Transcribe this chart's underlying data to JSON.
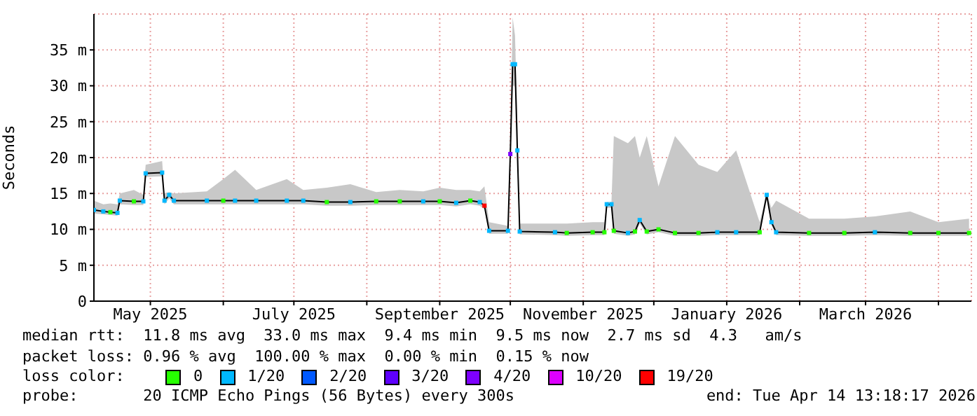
{
  "chart_data": {
    "type": "line",
    "ylabel": "Seconds",
    "legend_title": "loss color:",
    "legend": "bottom",
    "grid": true,
    "xlim": [
      "2025-04-07",
      "2026-04-15"
    ],
    "xticks": [
      {
        "value": "2025-05-01",
        "label": "May 2025"
      },
      {
        "value": "2025-06-01",
        "label": null
      },
      {
        "value": "2025-07-01",
        "label": "July 2025"
      },
      {
        "value": "2025-08-01",
        "label": null
      },
      {
        "value": "2025-09-01",
        "label": "September 2025"
      },
      {
        "value": "2025-10-01",
        "label": null
      },
      {
        "value": "2025-11-01",
        "label": "November 2025"
      },
      {
        "value": "2025-12-01",
        "label": null
      },
      {
        "value": "2026-01-01",
        "label": "January 2026"
      },
      {
        "value": "2026-02-01",
        "label": null
      },
      {
        "value": "2026-03-01",
        "label": "March 2026"
      },
      {
        "value": "2026-04-01",
        "label": null
      }
    ],
    "ylim": [
      0,
      40
    ],
    "yticks": [
      0,
      {
        "value": 5,
        "label": "5 m"
      },
      {
        "value": 10,
        "label": "10 m"
      },
      {
        "value": 15,
        "label": "15 m"
      },
      {
        "value": 20,
        "label": "20 m"
      },
      {
        "value": 25,
        "label": "25 m"
      },
      {
        "value": 30,
        "label": "30 m"
      },
      {
        "value": 35,
        "label": "35 m"
      }
    ],
    "x": [
      "2025-04-07",
      "2025-04-11",
      "2025-04-14",
      "2025-04-17",
      "2025-04-18",
      "2025-04-24",
      "2025-04-28",
      "2025-04-29",
      "2025-05-06",
      "2025-05-07",
      "2025-05-09",
      "2025-05-11",
      "2025-05-25",
      "2025-06-01",
      "2025-06-06",
      "2025-06-15",
      "2025-06-28",
      "2025-07-05",
      "2025-07-15",
      "2025-07-25",
      "2025-08-05",
      "2025-08-15",
      "2025-08-25",
      "2025-09-01",
      "2025-09-08",
      "2025-09-14",
      "2025-09-18",
      "2025-09-20",
      "2025-09-22",
      "2025-09-30",
      "2025-10-01",
      "2025-10-02",
      "2025-10-03",
      "2025-10-04",
      "2025-10-05",
      "2025-10-20",
      "2025-10-25",
      "2025-11-05",
      "2025-11-10",
      "2025-11-11",
      "2025-11-13",
      "2025-11-14",
      "2025-11-20",
      "2025-11-23",
      "2025-11-25",
      "2025-11-28",
      "2025-12-03",
      "2025-12-10",
      "2025-12-20",
      "2025-12-28",
      "2026-01-05",
      "2026-01-15",
      "2026-01-18",
      "2026-01-20",
      "2026-01-22",
      "2026-02-05",
      "2026-02-20",
      "2026-03-05",
      "2026-03-20",
      "2026-04-01",
      "2026-04-14"
    ],
    "series": [
      {
        "color": "#000000",
        "values": [
          12.7,
          12.5,
          12.4,
          12.3,
          14.0,
          13.9,
          13.9,
          17.8,
          17.9,
          14.0,
          14.8,
          14.0,
          14.0,
          14.0,
          14.0,
          14.0,
          14.0,
          14.0,
          13.8,
          13.8,
          13.9,
          13.9,
          13.9,
          13.9,
          13.7,
          14.0,
          13.8,
          13.3,
          9.8,
          9.8,
          20.5,
          33.0,
          33.0,
          21.0,
          9.7,
          9.6,
          9.5,
          9.6,
          9.6,
          13.5,
          13.5,
          9.8,
          9.5,
          9.7,
          11.3,
          9.7,
          10.0,
          9.5,
          9.5,
          9.6,
          9.6,
          9.6,
          14.8,
          11.0,
          9.6,
          9.5,
          9.5,
          9.6,
          9.5,
          9.5,
          9.5
        ],
        "lower": [
          12.2,
          12.1,
          12.0,
          11.9,
          13.5,
          13.4,
          13.4,
          17.3,
          17.4,
          13.5,
          14.3,
          13.5,
          13.5,
          13.5,
          13.5,
          13.5,
          13.5,
          13.5,
          13.3,
          13.3,
          13.4,
          13.4,
          13.4,
          13.4,
          13.2,
          13.5,
          13.3,
          12.8,
          9.4,
          9.4,
          19.5,
          30.0,
          30.0,
          20.0,
          9.3,
          9.2,
          9.1,
          9.2,
          9.2,
          13.0,
          13.0,
          9.4,
          9.1,
          9.3,
          10.8,
          9.3,
          9.6,
          9.1,
          9.1,
          9.2,
          9.2,
          9.2,
          14.3,
          10.6,
          9.2,
          9.1,
          9.1,
          9.2,
          9.1,
          9.1,
          9.1
        ],
        "upper": [
          14.0,
          13.5,
          13.6,
          13.5,
          15.0,
          15.5,
          14.8,
          19.0,
          19.5,
          15.0,
          15.2,
          15.0,
          15.3,
          17.0,
          18.3,
          15.5,
          17.0,
          15.5,
          15.8,
          16.3,
          15.2,
          15.5,
          15.3,
          15.8,
          15.5,
          15.5,
          15.3,
          16.0,
          11.0,
          10.5,
          22.0,
          39.5,
          37.0,
          25.0,
          10.8,
          10.8,
          10.8,
          11.0,
          11.0,
          13.8,
          13.8,
          23.0,
          22.0,
          23.0,
          20.0,
          23.0,
          16.0,
          23.0,
          19.0,
          18.0,
          21.0,
          11.0,
          15.0,
          13.0,
          14.0,
          11.5,
          11.5,
          11.8,
          12.5,
          11.0,
          11.5
        ]
      },
      {
        "type": "scatter",
        "marker": "square",
        "name": "0",
        "color": "#26ff00",
        "x": [
          "2025-04-14",
          "2025-04-24",
          "2025-06-01",
          "2025-07-15",
          "2025-08-05",
          "2025-08-15",
          "2025-09-01",
          "2025-09-14",
          "2025-10-25",
          "2025-11-05",
          "2025-11-10",
          "2025-11-14",
          "2025-11-23",
          "2025-11-28",
          "2025-12-03",
          "2025-12-10",
          "2025-12-20",
          "2026-01-15",
          "2026-02-05",
          "2026-02-20",
          "2026-03-20",
          "2026-04-01",
          "2026-04-14"
        ],
        "values": [
          12.4,
          13.9,
          14.0,
          13.8,
          13.9,
          13.9,
          13.9,
          14.0,
          9.5,
          9.6,
          9.6,
          9.8,
          9.7,
          9.7,
          10.0,
          9.5,
          9.5,
          9.6,
          9.5,
          9.5,
          9.5,
          9.5,
          9.5
        ]
      },
      {
        "type": "scatter",
        "marker": "square",
        "name": "1/20",
        "color": "#00b8ff",
        "x": [
          "2025-04-07",
          "2025-04-11",
          "2025-04-17",
          "2025-04-18",
          "2025-04-28",
          "2025-04-29",
          "2025-05-06",
          "2025-05-07",
          "2025-05-09",
          "2025-05-11",
          "2025-05-25",
          "2025-06-06",
          "2025-06-15",
          "2025-06-28",
          "2025-07-05",
          "2025-07-25",
          "2025-08-25",
          "2025-09-08",
          "2025-09-18",
          "2025-09-22",
          "2025-09-30",
          "2025-10-02",
          "2025-10-03",
          "2025-10-04",
          "2025-10-05",
          "2025-10-20",
          "2025-11-11",
          "2025-11-13",
          "2025-11-20",
          "2025-11-25",
          "2025-12-28",
          "2026-01-05",
          "2026-01-18",
          "2026-01-20",
          "2026-01-22",
          "2026-03-05"
        ],
        "values": [
          12.7,
          12.5,
          12.3,
          14.0,
          13.9,
          17.8,
          17.9,
          14.0,
          14.8,
          14.0,
          14.0,
          14.0,
          14.0,
          14.0,
          14.0,
          13.8,
          13.9,
          13.7,
          13.8,
          9.8,
          9.8,
          33.0,
          33.0,
          21.0,
          9.7,
          9.6,
          13.5,
          13.5,
          9.5,
          11.3,
          9.6,
          9.6,
          14.8,
          11.0,
          9.6,
          9.6
        ]
      },
      {
        "type": "scatter",
        "marker": "square",
        "name": "2/20",
        "color": "#0059ff",
        "values": [
          null,
          null,
          null,
          null,
          null,
          null,
          null,
          null,
          null,
          null,
          null,
          null,
          null,
          null,
          null,
          null,
          null,
          null,
          null,
          null,
          null,
          null,
          null,
          null,
          null,
          null,
          null,
          null,
          null,
          null,
          null,
          null,
          null,
          null,
          null,
          null,
          null,
          null,
          null,
          null,
          null,
          null,
          null,
          null,
          null,
          null,
          null,
          null,
          null,
          null,
          null,
          null,
          null,
          null,
          null,
          null,
          null,
          null,
          null,
          null,
          null
        ]
      },
      {
        "type": "scatter",
        "marker": "square",
        "name": "3/20",
        "color": "#5e00ff",
        "values": [
          null,
          null,
          null,
          null,
          null,
          null,
          null,
          null,
          null,
          null,
          null,
          null,
          null,
          null,
          null,
          null,
          null,
          null,
          null,
          null,
          null,
          null,
          null,
          null,
          null,
          null,
          null,
          null,
          null,
          null,
          null,
          null,
          null,
          null,
          null,
          null,
          null,
          null,
          null,
          null,
          null,
          null,
          null,
          null,
          null,
          null,
          null,
          null,
          null,
          null,
          null,
          null,
          null,
          null,
          null,
          null,
          null,
          null,
          null,
          null,
          null
        ]
      },
      {
        "type": "scatter",
        "marker": "square",
        "name": "4/20",
        "color": "#7e00ff",
        "x": [
          "2025-10-01"
        ],
        "values": [
          20.5
        ]
      },
      {
        "type": "scatter",
        "marker": "square",
        "name": "10/20",
        "color": "#dd00ff",
        "values": [
          null,
          null,
          null,
          null,
          null,
          null,
          null,
          null,
          null,
          null,
          null,
          null,
          null,
          null,
          null,
          null,
          null,
          null,
          null,
          null,
          null,
          null,
          null,
          null,
          null,
          null,
          null,
          null,
          null,
          null,
          null,
          null,
          null,
          null,
          null,
          null,
          null,
          null,
          null,
          null,
          null,
          null,
          null,
          null,
          null,
          null,
          null,
          null,
          null,
          null,
          null,
          null,
          null,
          null,
          null,
          null,
          null,
          null,
          null,
          null,
          null
        ]
      },
      {
        "type": "scatter",
        "marker": "square",
        "name": "19/20",
        "color": "#ff0000",
        "x": [
          "2025-09-20"
        ],
        "values": [
          13.3
        ]
      }
    ],
    "annotations": [
      "median rtt:  11.8 ms avg  33.0 ms max  9.4 ms min  9.5 ms now  2.7 ms sd  4.3   am/s",
      "packet loss: 0.96 % avg  100.00 % max  0.00 % min  0.15 % now",
      "probe:       20 ICMP Echo Pings (56 Bytes) every 300s",
      "end: Tue Apr 14 13:18:17 2026"
    ]
  }
}
